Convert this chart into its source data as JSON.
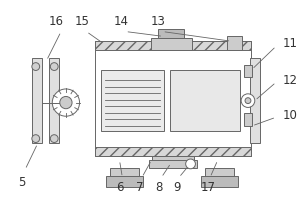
{
  "bg_color": "#ffffff",
  "line_color": "#666666",
  "label_color": "#333333",
  "label_fontsize": 8.5,
  "figsize": [
    3.0,
    2.0
  ],
  "dpi": 100
}
